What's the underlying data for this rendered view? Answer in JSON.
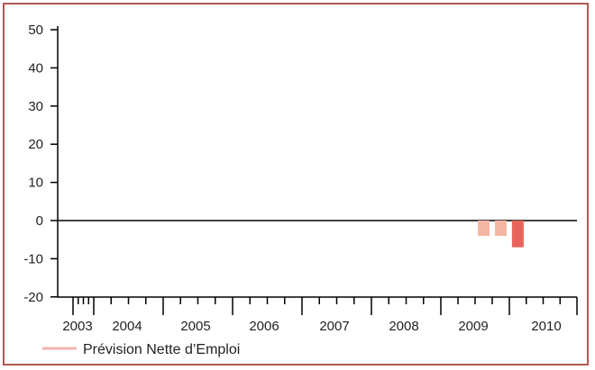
{
  "chart_data": {
    "type": "bar",
    "title": "",
    "xlabel": "",
    "ylabel": "",
    "ylim": [
      -20,
      50
    ],
    "yticks": [
      50,
      40,
      30,
      20,
      10,
      0,
      -10,
      -20
    ],
    "ytick_labels": [
      "50",
      "40",
      "30",
      "20",
      "10",
      "0",
      "-10",
      "-20"
    ],
    "year_labels": [
      "2003",
      "2004",
      "2005",
      "2006",
      "2007",
      "2008",
      "2009",
      "2010"
    ],
    "quarters_per_year": 4,
    "bars": [
      {
        "year": "2009",
        "quarter": 3,
        "value": -4,
        "color": "#f4b7a4"
      },
      {
        "year": "2009",
        "quarter": 4,
        "value": -4,
        "color": "#f4b7a4"
      },
      {
        "year": "2010",
        "quarter": 1,
        "value": -7,
        "color": "#e8645a"
      }
    ],
    "grid": false,
    "legend": {
      "position": "bottom-left",
      "items": [
        {
          "label": "Prévision Nette d’Emploi",
          "color": "#f2b5ae"
        }
      ]
    },
    "colors": {
      "frame": "#b25955",
      "axis": "#000000",
      "text": "#231f20"
    }
  }
}
